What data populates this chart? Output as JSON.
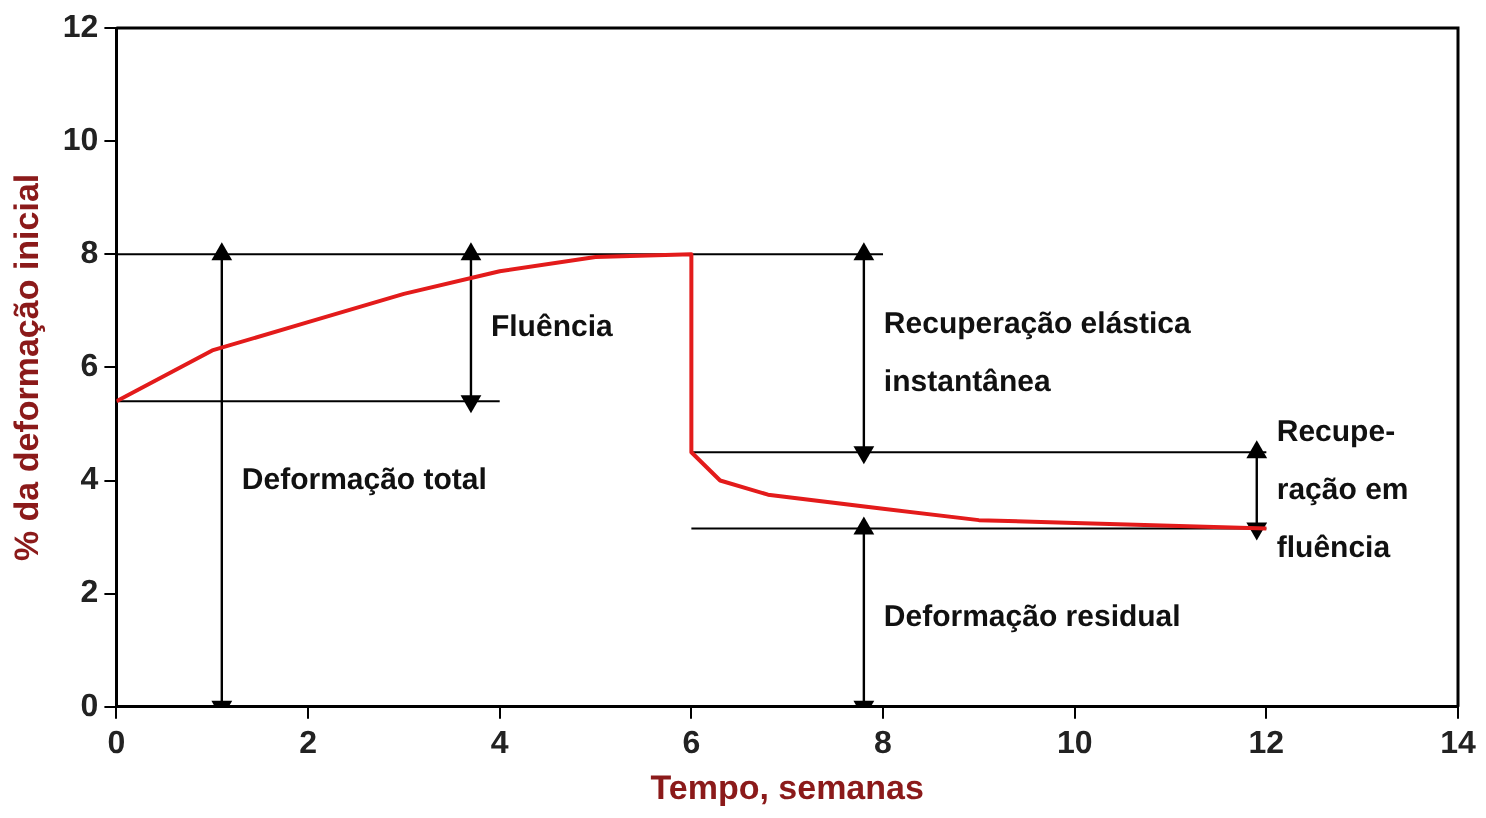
{
  "chart_data": {
    "type": "line",
    "xlabel": "Tempo, semanas",
    "ylabel": "% da deformação inicial",
    "xlim": [
      0,
      14
    ],
    "xticks": [
      0,
      2,
      4,
      6,
      8,
      10,
      12,
      14
    ],
    "ylim": [
      0,
      12
    ],
    "yticks": [
      0,
      2,
      4,
      6,
      8,
      10,
      12
    ],
    "grid": false,
    "marker": "none",
    "series": [
      {
        "color": "#e31b1b",
        "x": [
          0,
          1,
          2,
          3,
          4,
          5,
          6,
          6,
          6.3,
          6.8,
          8,
          9,
          10,
          11,
          12
        ],
        "values": [
          5.4,
          6.3,
          6.8,
          7.3,
          7.7,
          7.95,
          8,
          4.5,
          4.0,
          3.75,
          3.5,
          3.3,
          3.25,
          3.2,
          3.15
        ]
      },
      {
        "color": "#000000",
        "x": [
          0,
          8
        ],
        "values": [
          8,
          8
        ]
      },
      {
        "color": "#000000",
        "x": [
          0,
          4
        ],
        "values": [
          5.4,
          5.4
        ]
      },
      {
        "color": "#000000",
        "x": [
          6,
          12
        ],
        "values": [
          4.5,
          4.5
        ]
      },
      {
        "color": "#000000",
        "x": [
          6,
          12
        ],
        "values": [
          3.15,
          3.15
        ]
      },
      {
        "color": "#000000",
        "marker": "triangle",
        "x": [
          1.1,
          1.1
        ],
        "values": [
          0,
          8
        ]
      },
      {
        "color": "#000000",
        "marker": "triangle",
        "x": [
          3.7,
          3.7
        ],
        "values": [
          5.4,
          8
        ]
      },
      {
        "color": "#000000",
        "marker": "triangle",
        "x": [
          7.8,
          7.8
        ],
        "values": [
          4.5,
          8
        ]
      },
      {
        "color": "#000000",
        "marker": "triangle",
        "x": [
          11.9,
          11.9
        ],
        "values": [
          3.15,
          4.5
        ]
      },
      {
        "color": "#000000",
        "marker": "triangle",
        "x": [
          7.8,
          7.8
        ],
        "values": [
          0,
          3.15
        ]
      }
    ],
    "annotations": [
      "Deformação total",
      "Fluência",
      "Recuperação elástica\ninstantânea",
      "Recupe-\nração em\nfluência",
      "Deformação residual"
    ]
  }
}
